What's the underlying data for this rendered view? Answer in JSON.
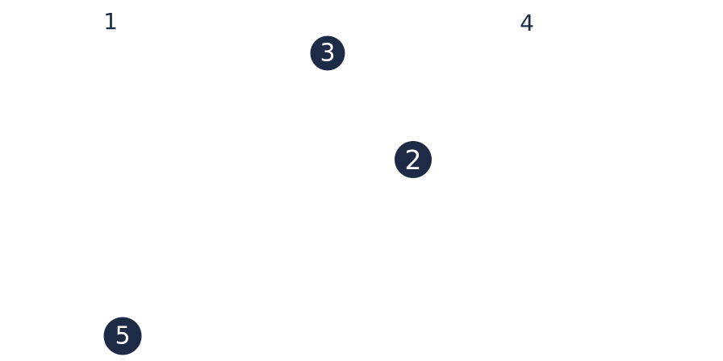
{
  "markers": {
    "one": "1",
    "two": "2",
    "three": "3",
    "four": "4",
    "five": "5"
  },
  "colors": {
    "marker_fill": "#1d2b46",
    "marker_text": "#ffffff",
    "plain_text": "#1d2b46",
    "background": "#ffffff"
  }
}
